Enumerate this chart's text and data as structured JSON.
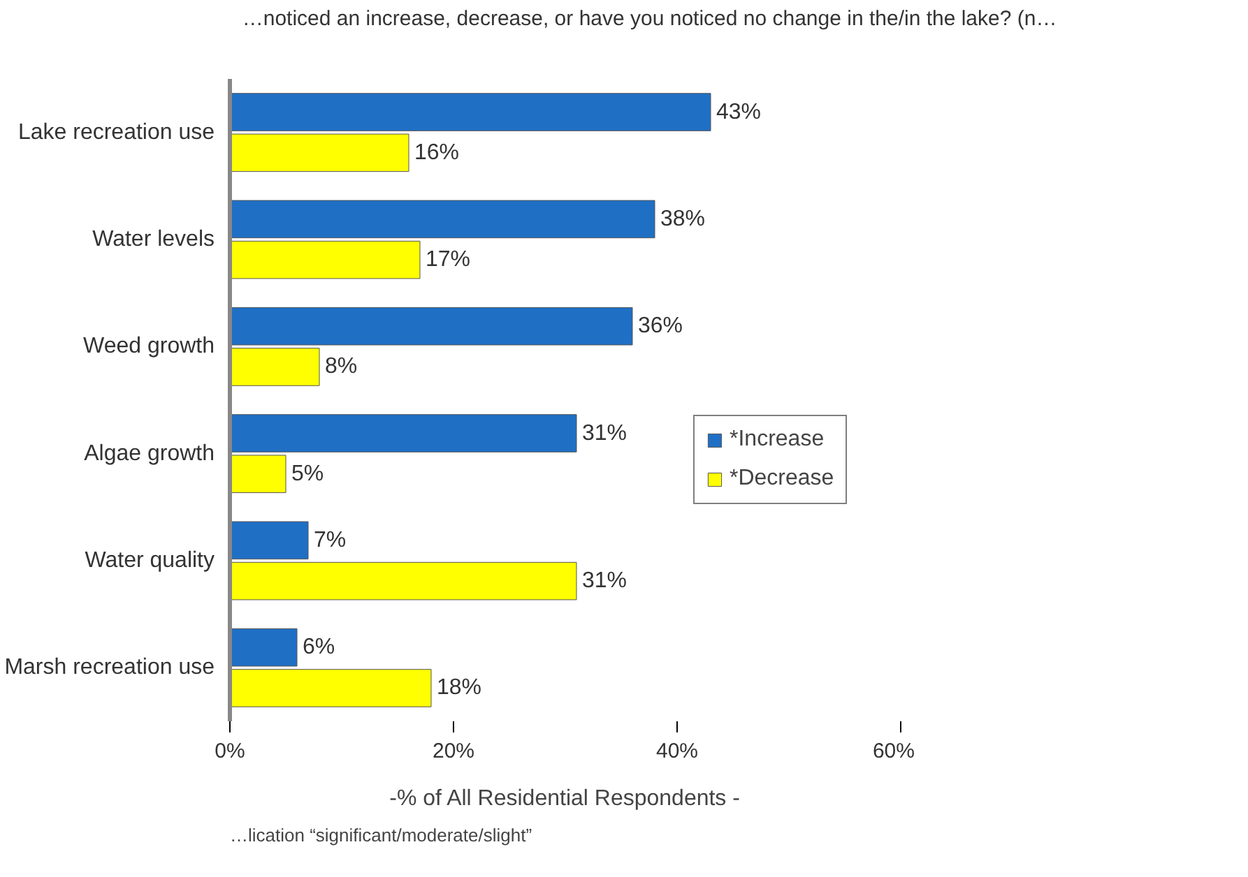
{
  "chart_data": {
    "type": "bar",
    "orientation": "horizontal",
    "title": "…noticed an increase, decrease, or have you noticed no change in the/in the lake? (n…",
    "xlabel": "-% of All Residential Respondents -",
    "categories": [
      "Lake recreation use",
      "Water levels",
      "Weed growth",
      "Algae growth",
      "Water quality",
      "Marsh recreation use"
    ],
    "series": [
      {
        "name": "*Increase",
        "color": "#1f6fc5",
        "values": [
          43,
          38,
          36,
          31,
          7,
          6
        ],
        "value_labels": [
          "43%",
          "38%",
          "36%",
          "31%",
          "7%",
          "6%"
        ]
      },
      {
        "name": "*Decrease",
        "color": "#ffff00",
        "values": [
          16,
          17,
          8,
          5,
          31,
          18
        ],
        "value_labels": [
          "16%",
          "17%",
          "8%",
          "5%",
          "31%",
          "18%"
        ]
      }
    ],
    "xlim": [
      0,
      60
    ],
    "xticks": [
      {
        "value": 0,
        "label": "0%"
      },
      {
        "value": 20,
        "label": "20%"
      },
      {
        "value": 40,
        "label": "40%"
      },
      {
        "value": 60,
        "label": "60%"
      }
    ],
    "legend": "right",
    "grid": false,
    "annotations": [
      "…lication “significant/moderate/slight”"
    ]
  }
}
